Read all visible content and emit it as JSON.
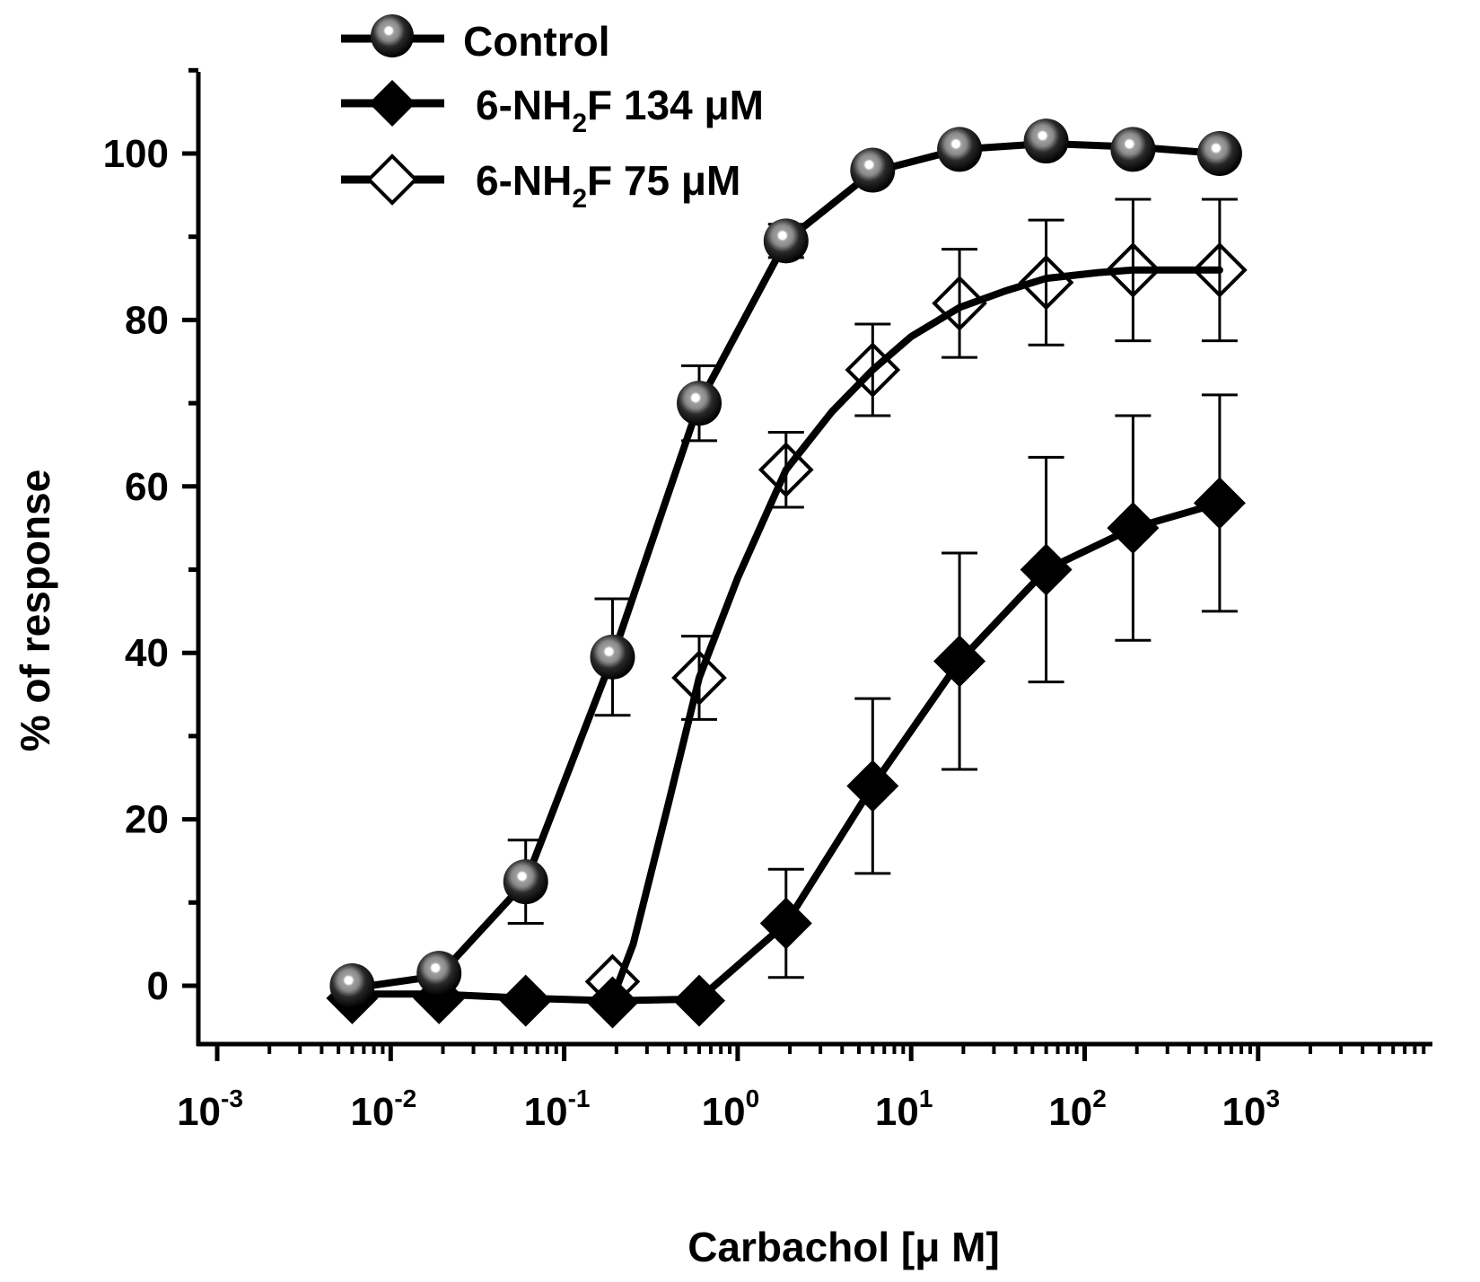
{
  "chart_data": {
    "type": "line",
    "title": "",
    "xlabel": "Carbachol [μ M]",
    "ylabel": "%  of response",
    "xscale": "log",
    "xlim": [
      0.0007,
      6000
    ],
    "ylim": [
      -5,
      110
    ],
    "x_ticks": [
      {
        "base": "10",
        "exp": "-3",
        "value": 0.001
      },
      {
        "base": "10",
        "exp": "-2",
        "value": 0.01
      },
      {
        "base": "10",
        "exp": "-1",
        "value": 0.1
      },
      {
        "base": "10",
        "exp": "0",
        "value": 1
      },
      {
        "base": "10",
        "exp": "1",
        "value": 10
      },
      {
        "base": "10",
        "exp": "2",
        "value": 100
      },
      {
        "base": "10",
        "exp": "3",
        "value": 1000
      }
    ],
    "y_ticks": [
      {
        "label": "0",
        "value": 0
      },
      {
        "label": "20",
        "value": 20
      },
      {
        "label": "40",
        "value": 40
      },
      {
        "label": "60",
        "value": 60
      },
      {
        "label": "80",
        "value": 80
      },
      {
        "label": "100",
        "value": 100
      }
    ],
    "legend_position": "top-left",
    "series": [
      {
        "name": "Control",
        "legend": {
          "pre": "Control",
          "sub": "",
          "post": ""
        },
        "marker": "circle-gray",
        "x": [
          0.006,
          0.019,
          0.06,
          0.19,
          0.6,
          1.9,
          6,
          19,
          60,
          190,
          600
        ],
        "y": [
          0,
          1.5,
          12.5,
          39.5,
          70,
          89.5,
          98,
          100.5,
          101.5,
          100.5,
          100
        ],
        "err": [
          0,
          0,
          5,
          7,
          4.5,
          2,
          0,
          0,
          0,
          0,
          0
        ],
        "fit": [
          [
            0.006,
            -0.3
          ],
          [
            0.019,
            1.2
          ],
          [
            0.06,
            12.5
          ],
          [
            0.19,
            39.5
          ],
          [
            0.6,
            70
          ],
          [
            1.9,
            89.5
          ],
          [
            6,
            97.8
          ],
          [
            19,
            100.5
          ],
          [
            60,
            101.2
          ],
          [
            190,
            100.8
          ],
          [
            600,
            100
          ]
        ]
      },
      {
        "name": "6-NH2F 134 μM",
        "legend": {
          "pre": "6-NH",
          "sub": "2",
          "post": "F 134 μM"
        },
        "marker": "diamond-filled",
        "x": [
          0.006,
          0.019,
          0.06,
          0.19,
          0.6,
          1.9,
          6,
          19,
          60,
          190,
          600
        ],
        "y": [
          -1.5,
          -1.5,
          -1.8,
          -2,
          -1.8,
          7.5,
          24,
          39,
          50,
          55,
          58
        ],
        "err": [
          0,
          0,
          0,
          0,
          0,
          6.5,
          10.5,
          13,
          13.5,
          13.5,
          13
        ],
        "fit": [
          [
            0.006,
            -1
          ],
          [
            0.019,
            -1
          ],
          [
            0.06,
            -1.5
          ],
          [
            0.19,
            -1.8
          ],
          [
            0.6,
            -1.6
          ],
          [
            1.9,
            7.5
          ],
          [
            6,
            24
          ],
          [
            19,
            39
          ],
          [
            60,
            50
          ],
          [
            190,
            55
          ],
          [
            600,
            58
          ]
        ]
      },
      {
        "name": "6-NH2F 75 μM",
        "legend": {
          "pre": "6-NH",
          "sub": "2",
          "post": "F 75 μM"
        },
        "marker": "diamond-open",
        "x": [
          0.19,
          0.6,
          1.9,
          6,
          19,
          60,
          190,
          600
        ],
        "y": [
          0.5,
          37,
          62,
          74,
          82,
          84.5,
          86,
          86
        ],
        "err": [
          0,
          5,
          4.5,
          5.5,
          6.5,
          7.5,
          8.5,
          8.5
        ],
        "fit": [
          [
            0.19,
            -1.5
          ],
          [
            0.25,
            5
          ],
          [
            0.4,
            22
          ],
          [
            0.6,
            37
          ],
          [
            1,
            49
          ],
          [
            1.9,
            62
          ],
          [
            3.5,
            69
          ],
          [
            6,
            74
          ],
          [
            10,
            78
          ],
          [
            19,
            81.5
          ],
          [
            35,
            83.5
          ],
          [
            60,
            85
          ],
          [
            120,
            85.7
          ],
          [
            190,
            86
          ],
          [
            350,
            86
          ],
          [
            600,
            86
          ]
        ]
      }
    ]
  }
}
